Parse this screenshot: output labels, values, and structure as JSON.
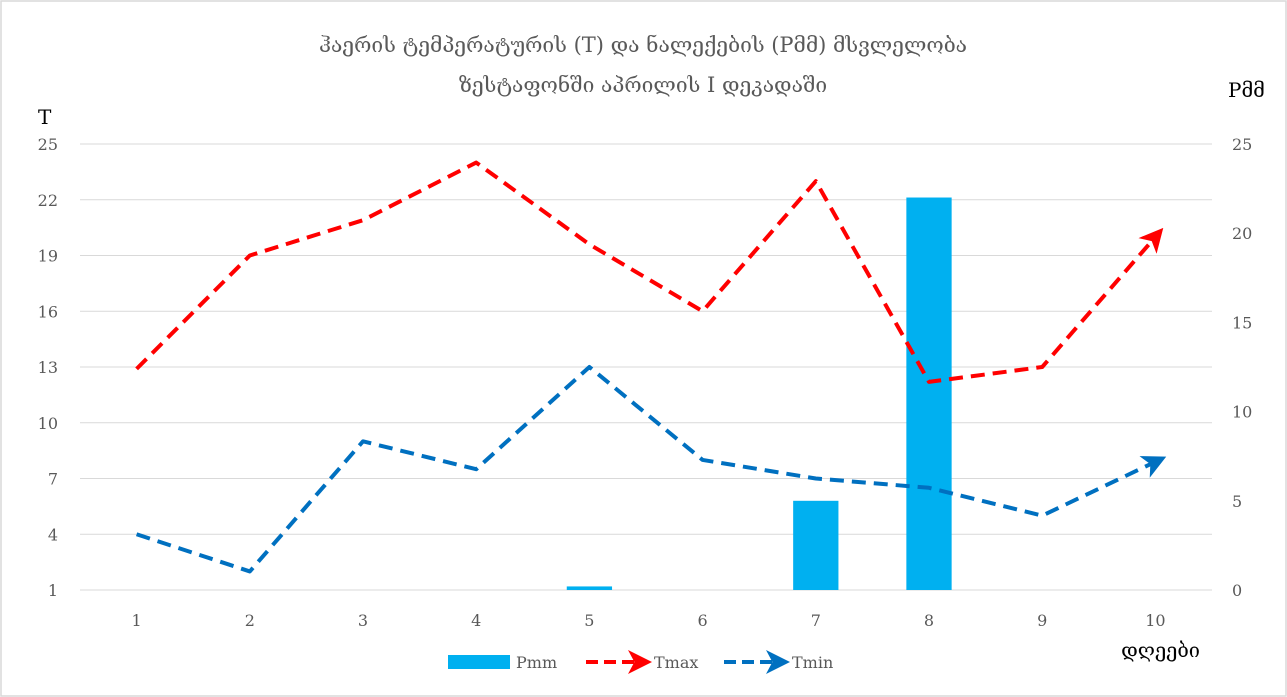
{
  "chart_data": {
    "type": "bar",
    "title_lines": [
      "ჰაერის ტემპერატურის (T) და ნალექების (Pმმ)  მსვლელობა",
      "ზესტაფონში აპრილის I დეკადაში"
    ],
    "categories": [
      "1",
      "2",
      "3",
      "4",
      "5",
      "6",
      "7",
      "8",
      "9",
      "10"
    ],
    "ylabel_left": "T",
    "ylabel_right": "Pმმ",
    "xlabel": "დღეები",
    "y_left": {
      "min": 1,
      "max": 25,
      "ticks": [
        1,
        4,
        7,
        10,
        13,
        16,
        19,
        22,
        25
      ]
    },
    "y_right": {
      "min": 0,
      "max": 25,
      "ticks": [
        0,
        5,
        10,
        15,
        20,
        25
      ]
    },
    "grid": true,
    "legend_position": "bottom",
    "series": [
      {
        "name": "Pmm",
        "kind": "bar",
        "axis": "right",
        "color": "#00b0f0",
        "values": [
          0,
          0,
          0,
          0,
          0.2,
          0,
          5,
          22,
          0,
          0
        ]
      },
      {
        "name": "Tmax",
        "kind": "line",
        "axis": "left",
        "color": "#ff0000",
        "values": [
          12.9,
          19,
          20.9,
          24,
          19.6,
          16,
          23,
          12.2,
          13,
          20
        ]
      },
      {
        "name": "Tmin",
        "kind": "line",
        "axis": "left",
        "color": "#0070c0",
        "values": [
          4,
          2,
          9,
          7.5,
          13,
          8,
          7,
          6.5,
          5,
          7.9
        ]
      }
    ]
  }
}
